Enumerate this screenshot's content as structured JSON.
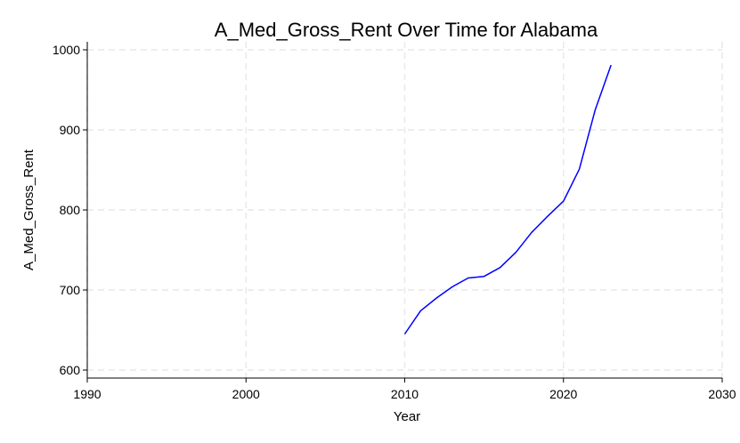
{
  "chart_data": {
    "type": "line",
    "title": "A_Med_Gross_Rent Over Time for Alabama",
    "xlabel": "Year",
    "ylabel": "A_Med_Gross_Rent",
    "xlim": [
      1990,
      2030
    ],
    "ylim": [
      590,
      1010
    ],
    "xticks": [
      1990,
      2000,
      2010,
      2020,
      2030
    ],
    "yticks": [
      600,
      700,
      800,
      900,
      1000
    ],
    "grid": true,
    "series_color": "#0000ff",
    "x": [
      2010,
      2011,
      2012,
      2013,
      2014,
      2015,
      2016,
      2017,
      2018,
      2019,
      2020,
      2021,
      2022,
      2023
    ],
    "series": [
      {
        "values": [
          645,
          674,
          690,
          704,
          715,
          717,
          728,
          747,
          772,
          792,
          811,
          851,
          925,
          981
        ]
      }
    ]
  }
}
